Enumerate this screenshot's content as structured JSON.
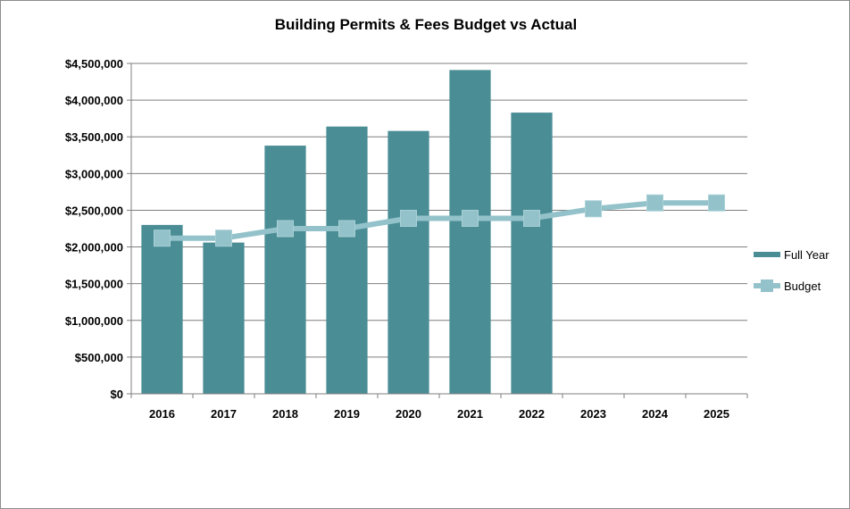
{
  "chart_data": {
    "type": "bar",
    "title": "Building Permits & Fees Budget vs Actual",
    "xlabel": "",
    "ylabel": "",
    "categories": [
      "2016",
      "2017",
      "2018",
      "2019",
      "2020",
      "2021",
      "2022",
      "2023",
      "2024",
      "2025"
    ],
    "ylim": [
      0,
      4500000
    ],
    "y_ticks": [
      0,
      500000,
      1000000,
      1500000,
      2000000,
      2500000,
      3000000,
      3500000,
      4000000,
      4500000
    ],
    "y_tick_labels": [
      "$0",
      "$500,000",
      "$1,000,000",
      "$1,500,000",
      "$2,000,000",
      "$2,500,000",
      "$3,000,000",
      "$3,500,000",
      "$4,000,000",
      "$4,500,000"
    ],
    "grid": true,
    "legend_position": "right",
    "series": [
      {
        "name": "Full Year",
        "type": "bar",
        "color": "#4a8d95",
        "values": [
          2300000,
          2060000,
          3380000,
          3640000,
          3580000,
          4410000,
          3830000,
          null,
          null,
          null
        ]
      },
      {
        "name": "Budget",
        "type": "line",
        "color": "#93c2ca",
        "values": [
          2120000,
          2120000,
          2250000,
          2250000,
          2390000,
          2390000,
          2390000,
          2520000,
          2600000,
          2600000
        ]
      }
    ]
  }
}
